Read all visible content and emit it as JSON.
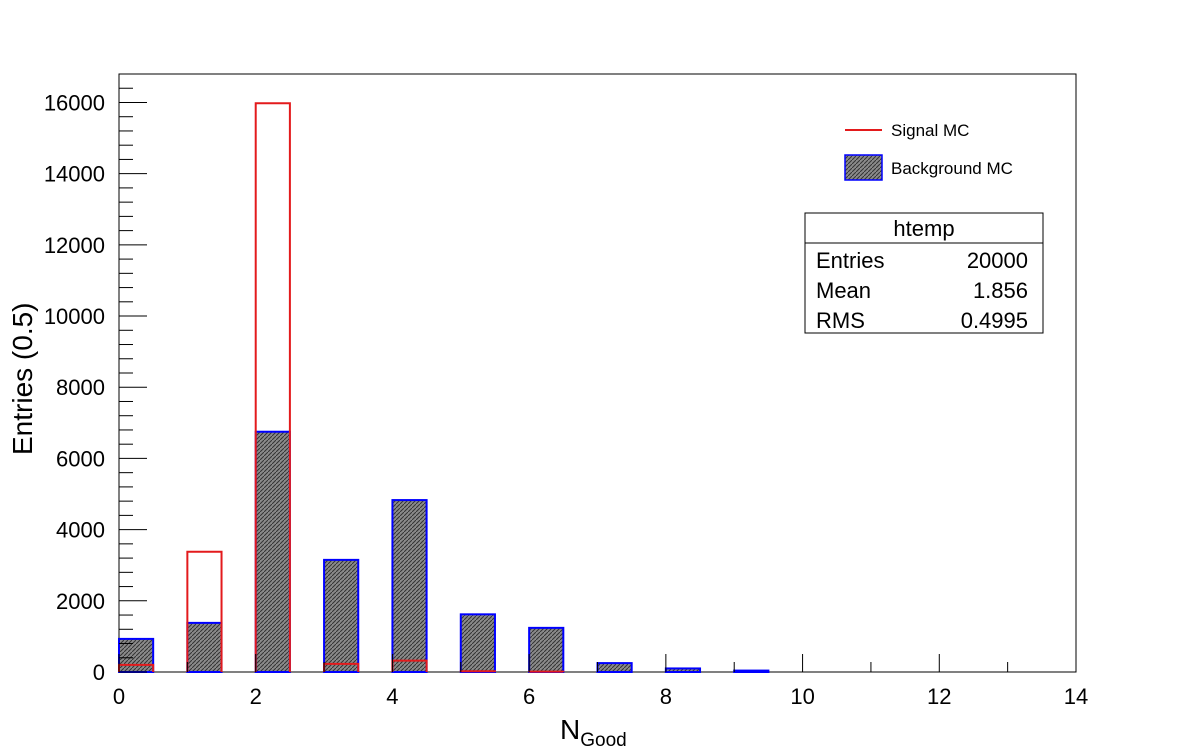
{
  "chart_data": {
    "type": "bar",
    "xlabel_main": "N",
    "xlabel_sub": "Good",
    "ylabel": "Entries (0.5)",
    "xlim": [
      0,
      14
    ],
    "ylim": [
      0,
      16800
    ],
    "x_ticks": [
      0,
      2,
      4,
      6,
      8,
      10,
      12,
      14
    ],
    "y_ticks": [
      0,
      2000,
      4000,
      6000,
      8000,
      10000,
      12000,
      14000,
      16000
    ],
    "bin_width": 0.5,
    "bin_starts": [
      0,
      1,
      2,
      3,
      4,
      5,
      6,
      7,
      8,
      9
    ],
    "series": [
      {
        "name": "Signal MC",
        "style": "outline",
        "color": "#e31a1c",
        "values": [
          200,
          3380,
          15980,
          230,
          320,
          20,
          10,
          0,
          0,
          0
        ]
      },
      {
        "name": "Background MC",
        "style": "hatched-fill",
        "color": "#0000ff",
        "fill": "#7a7a7a",
        "values": [
          930,
          1380,
          6750,
          3150,
          4830,
          1620,
          1240,
          250,
          100,
          40
        ]
      }
    ]
  },
  "legend": {
    "signal_label": "Signal MC",
    "background_label": "Background MC"
  },
  "stats_box": {
    "title": "htemp",
    "rows": [
      {
        "label": "Entries",
        "value": "20000"
      },
      {
        "label": "Mean",
        "value": "1.856"
      },
      {
        "label": "RMS",
        "value": "0.4995"
      }
    ]
  }
}
